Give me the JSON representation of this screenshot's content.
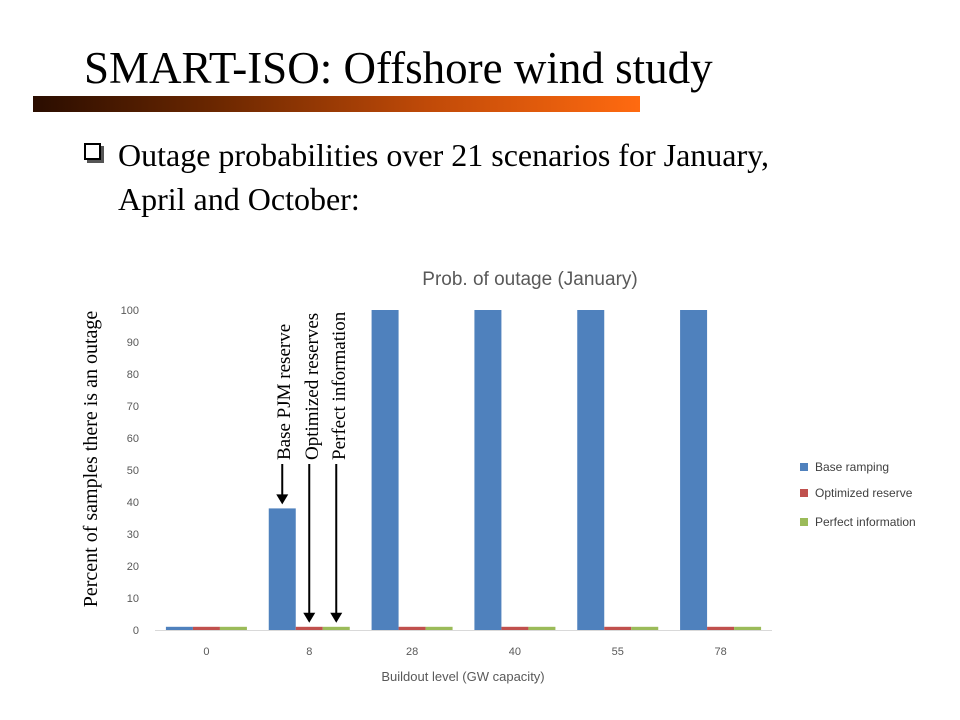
{
  "slide": {
    "title": "SMART-ISO: Offshore wind study",
    "bullet": "Outage probabilities over 21 scenarios for January, April and October:"
  },
  "chart_data": {
    "type": "bar",
    "title": "Prob. of outage (January)",
    "xlabel": "Buildout level (GW capacity)",
    "ylabel": "Percent of samples there is an outage",
    "categories": [
      "0",
      "8",
      "28",
      "40",
      "55",
      "78"
    ],
    "ylim": [
      0,
      100
    ],
    "yticks": [
      0,
      10,
      20,
      30,
      40,
      50,
      60,
      70,
      80,
      90,
      100
    ],
    "grid": false,
    "legend_position": "right",
    "series": [
      {
        "name": "Base ramping",
        "values": [
          1,
          38,
          100,
          100,
          100,
          100
        ],
        "color": "#4f81bd"
      },
      {
        "name": "Optimized reserve",
        "values": [
          1,
          1,
          1,
          1,
          1,
          1
        ],
        "color": "#c0504d"
      },
      {
        "name": "Perfect information",
        "values": [
          1,
          1,
          1,
          1,
          1,
          1
        ],
        "color": "#9bbb59"
      }
    ],
    "annotations": [
      {
        "text": "Base PJM reserve",
        "points_to": "Base ramping at 8"
      },
      {
        "text": "Optimized reserves",
        "points_to": "Optimized reserve at 8"
      },
      {
        "text": "Perfect information",
        "points_to": "Perfect information at 8"
      }
    ]
  }
}
